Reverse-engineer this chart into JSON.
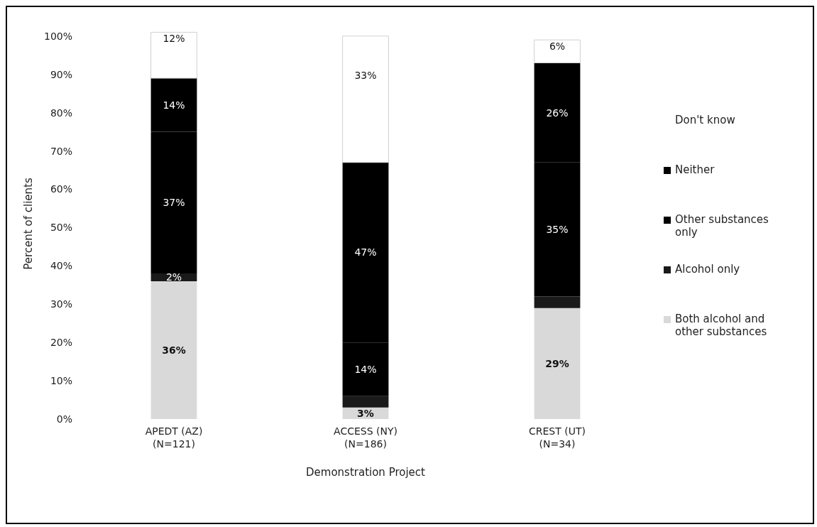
{
  "chart_data": {
    "type": "bar",
    "stacked": true,
    "xlabel": "Demonstration Project",
    "ylabel": "Percent of clients",
    "categories": [
      "APEDT (AZ)\n(N=121)",
      "ACCESS (NY)\n(N=186)",
      "CREST (UT)\n(N=34)"
    ],
    "series": [
      {
        "name": "Both alcohol and other substances",
        "color": "#d9d9d9",
        "values": [
          36,
          3,
          29
        ],
        "value_labels": [
          "36%",
          "3%",
          "29%"
        ]
      },
      {
        "name": "Alcohol only",
        "color": "#1a1a1a",
        "values": [
          2,
          3,
          3
        ],
        "value_labels": [
          "2%",
          null,
          null
        ]
      },
      {
        "name": "Other substances only",
        "color": "#000000",
        "values": [
          37,
          14,
          35
        ],
        "value_labels": [
          "37%",
          "14%",
          "35%"
        ]
      },
      {
        "name": "Neither",
        "color": "#000000",
        "values": [
          14,
          47,
          26
        ],
        "value_labels": [
          "14%",
          "47%",
          "26%"
        ]
      },
      {
        "name": "Don't know",
        "color": "#ffffff",
        "values": [
          12,
          33,
          6
        ],
        "value_labels": [
          "12%",
          "33%",
          "6%"
        ]
      }
    ],
    "ylim": [
      0,
      102
    ],
    "yticks": [
      {
        "value": 0,
        "label": "0%"
      },
      {
        "value": 10,
        "label": "10%"
      },
      {
        "value": 20,
        "label": "20%"
      },
      {
        "value": 30,
        "label": "30%"
      },
      {
        "value": 40,
        "label": "40%"
      },
      {
        "value": 50,
        "label": "50%"
      },
      {
        "value": 60,
        "label": "60%"
      },
      {
        "value": 70,
        "label": "70%"
      },
      {
        "value": 80,
        "label": "80%"
      },
      {
        "value": 90,
        "label": "90%"
      },
      {
        "value": 100,
        "label": "100%"
      }
    ],
    "grid": false,
    "legend": "right"
  }
}
